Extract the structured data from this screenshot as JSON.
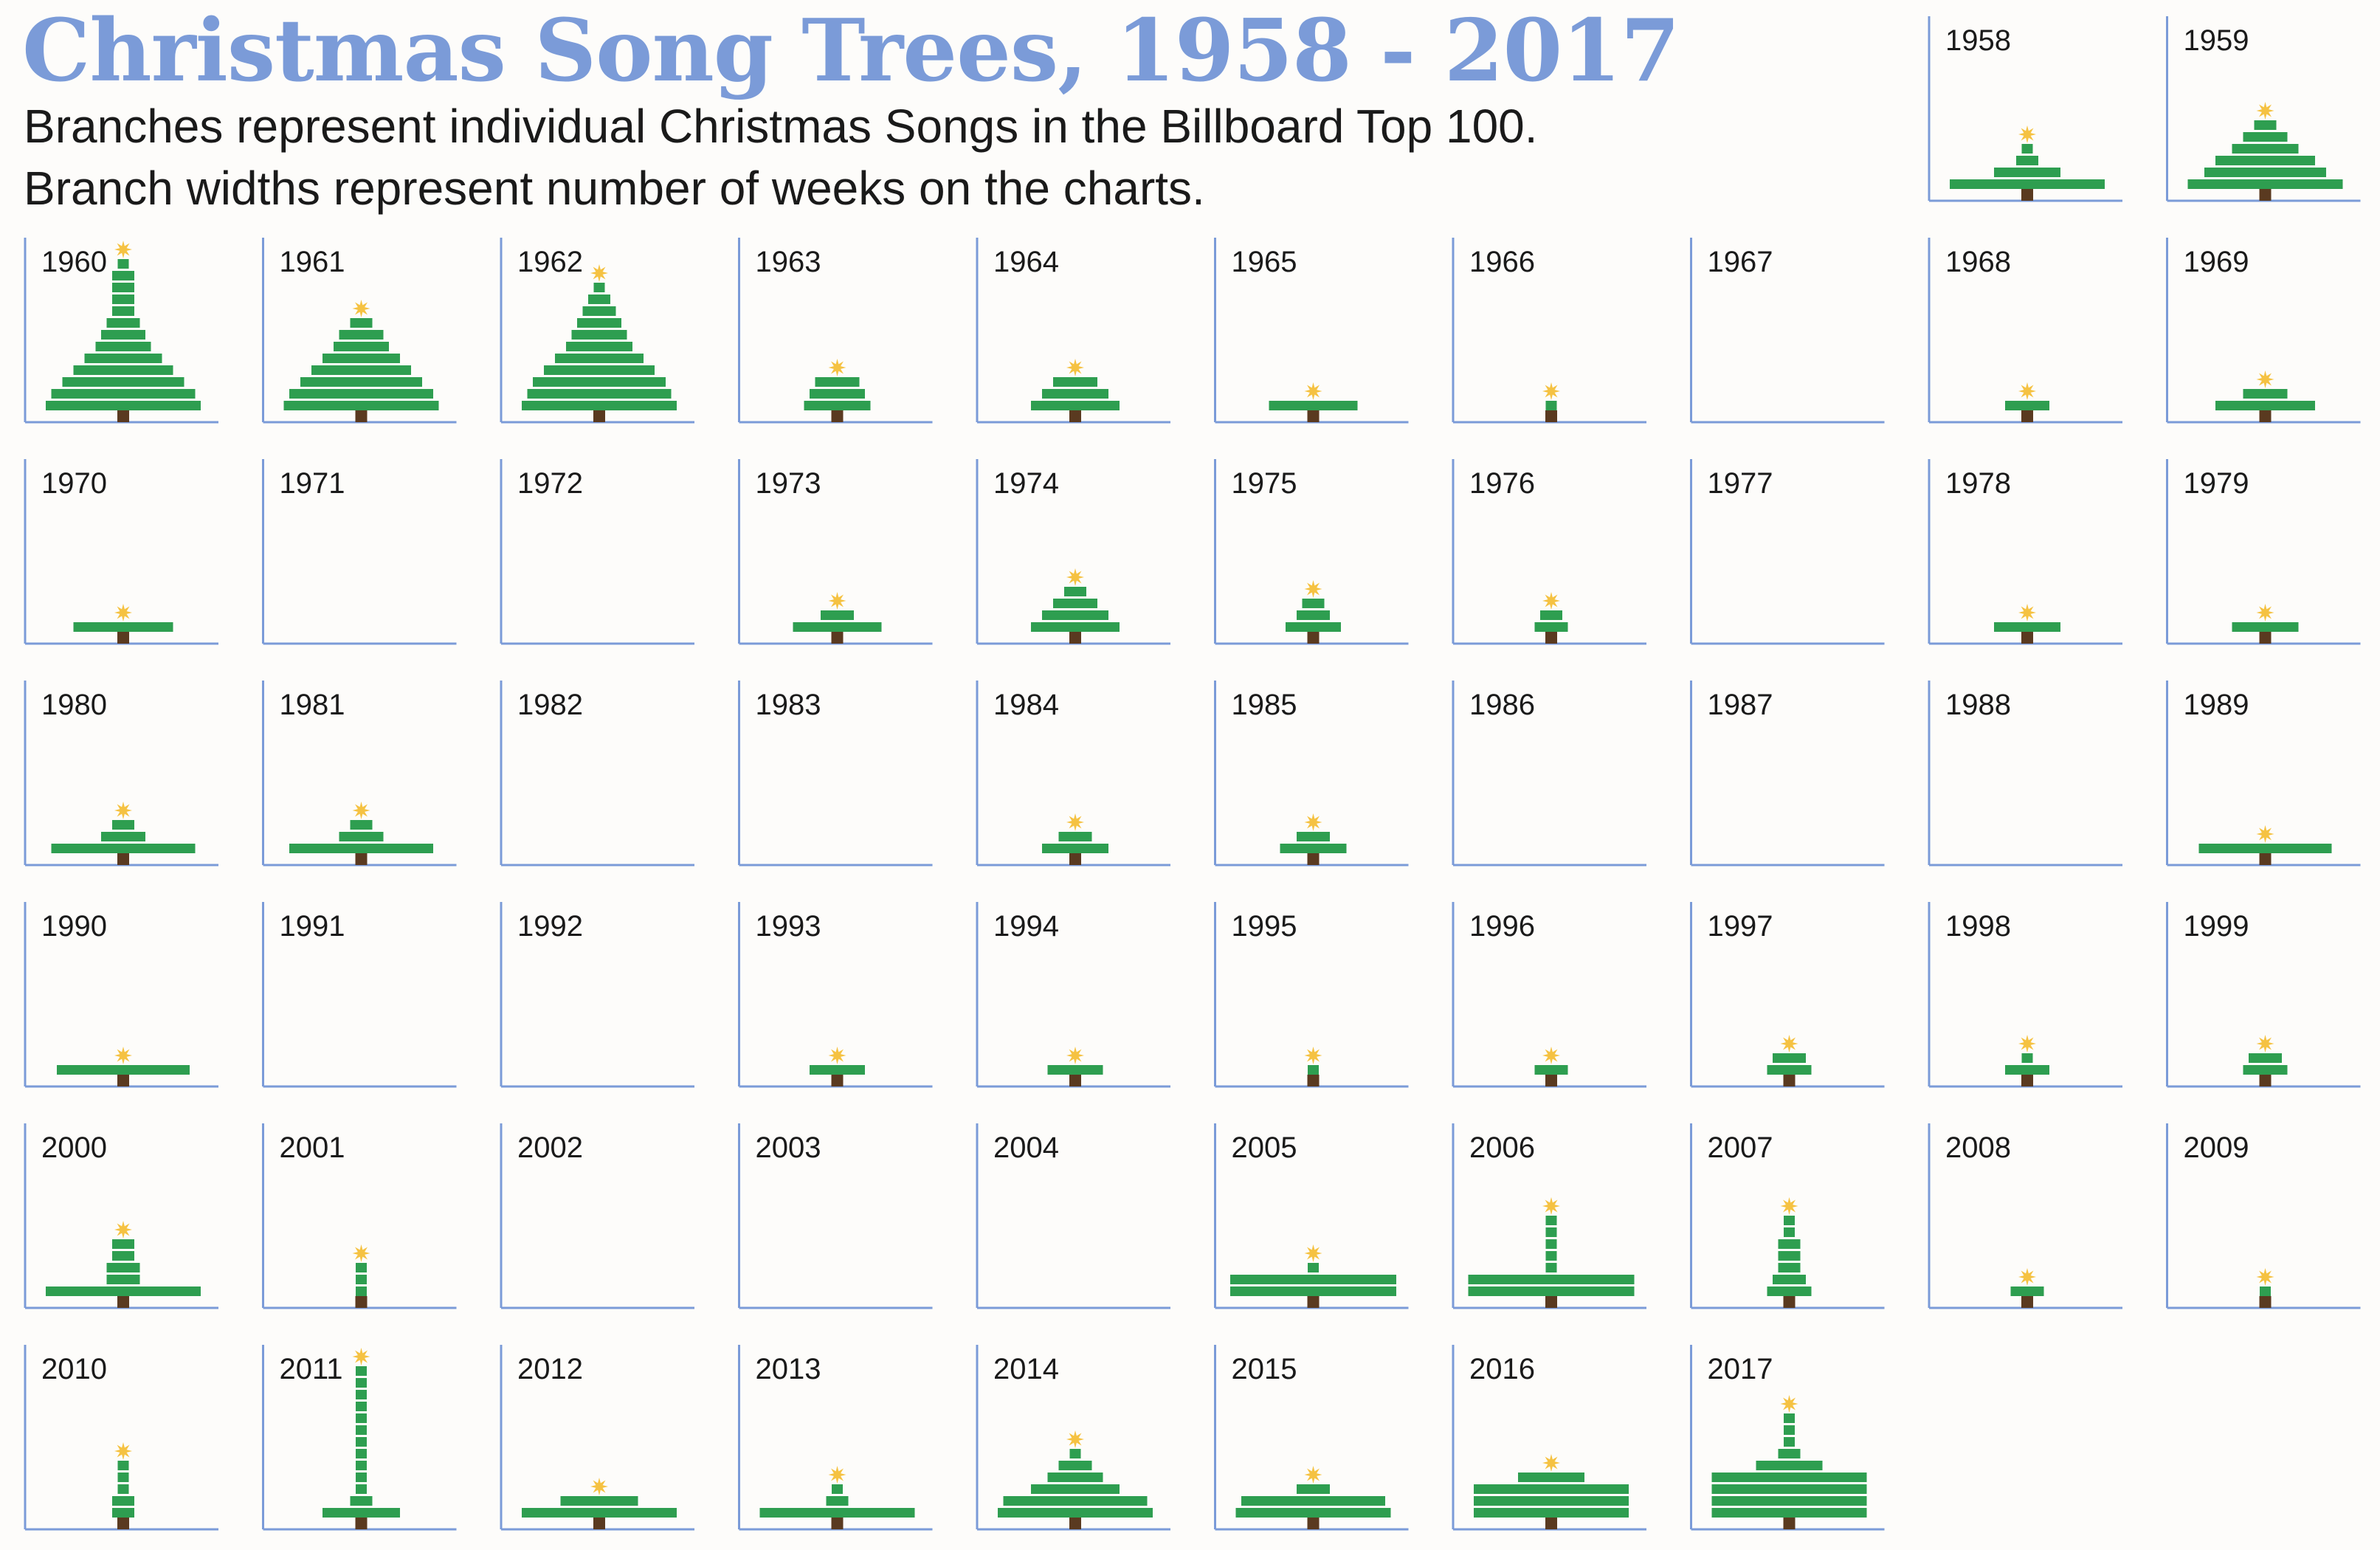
{
  "title": "Christmas Song Trees, 1958 - 2017",
  "subtitle_lines": [
    "Branches represent individual Christmas Songs in the Billboard Top 100.",
    "Branch widths represent number of weeks on the charts."
  ],
  "colors": {
    "title": "#7b9bd8",
    "axis": "#7b9bd8",
    "branch": "#2e9e50",
    "trunk": "#5a3a20",
    "star": "#f5c242",
    "text": "#1a1a1a"
  },
  "chart_data": {
    "type": "bar",
    "layout": "small-multiples",
    "encoding": "Each panel is one year; each horizontal branch is one Christmas song, branch width = weeks on the Billboard Top 100 chart, stacked widest at the bottom.",
    "xlabel": "",
    "ylabel": "",
    "grid": false,
    "years": [
      {
        "year": "1958",
        "weeks": [
          14,
          6,
          2,
          1
        ]
      },
      {
        "year": "1959",
        "weeks": [
          14,
          11,
          9,
          6,
          4,
          2
        ]
      },
      {
        "year": "1960",
        "weeks": [
          14,
          13,
          11,
          9,
          7,
          5,
          4,
          3,
          2,
          2,
          2,
          2,
          1
        ]
      },
      {
        "year": "1961",
        "weeks": [
          14,
          13,
          11,
          9,
          7,
          5,
          4,
          2
        ]
      },
      {
        "year": "1962",
        "weeks": [
          14,
          13,
          12,
          10,
          8,
          6,
          5,
          4,
          3,
          2,
          1
        ]
      },
      {
        "year": "1963",
        "weeks": [
          6,
          5,
          4
        ]
      },
      {
        "year": "1964",
        "weeks": [
          8,
          6,
          4
        ]
      },
      {
        "year": "1965",
        "weeks": [
          8
        ]
      },
      {
        "year": "1966",
        "weeks": [
          1
        ]
      },
      {
        "year": "1967",
        "weeks": []
      },
      {
        "year": "1968",
        "weeks": [
          4
        ]
      },
      {
        "year": "1969",
        "weeks": [
          9,
          4
        ]
      },
      {
        "year": "1970",
        "weeks": [
          9
        ]
      },
      {
        "year": "1971",
        "weeks": []
      },
      {
        "year": "1972",
        "weeks": []
      },
      {
        "year": "1973",
        "weeks": [
          8,
          3
        ]
      },
      {
        "year": "1974",
        "weeks": [
          8,
          6,
          4,
          2
        ]
      },
      {
        "year": "1975",
        "weeks": [
          5,
          3,
          2
        ]
      },
      {
        "year": "1976",
        "weeks": [
          3,
          2
        ]
      },
      {
        "year": "1977",
        "weeks": []
      },
      {
        "year": "1978",
        "weeks": [
          6
        ]
      },
      {
        "year": "1979",
        "weeks": [
          6
        ]
      },
      {
        "year": "1980",
        "weeks": [
          13,
          4,
          2
        ]
      },
      {
        "year": "1981",
        "weeks": [
          13,
          4,
          2
        ]
      },
      {
        "year": "1982",
        "weeks": []
      },
      {
        "year": "1983",
        "weeks": []
      },
      {
        "year": "1984",
        "weeks": [
          6,
          3
        ]
      },
      {
        "year": "1985",
        "weeks": [
          6,
          3
        ]
      },
      {
        "year": "1986",
        "weeks": []
      },
      {
        "year": "1987",
        "weeks": []
      },
      {
        "year": "1988",
        "weeks": []
      },
      {
        "year": "1989",
        "weeks": [
          12
        ]
      },
      {
        "year": "1990",
        "weeks": [
          12
        ]
      },
      {
        "year": "1991",
        "weeks": []
      },
      {
        "year": "1992",
        "weeks": []
      },
      {
        "year": "1993",
        "weeks": [
          5
        ]
      },
      {
        "year": "1994",
        "weeks": [
          5
        ]
      },
      {
        "year": "1995",
        "weeks": [
          1
        ]
      },
      {
        "year": "1996",
        "weeks": [
          3
        ]
      },
      {
        "year": "1997",
        "weeks": [
          4,
          3
        ]
      },
      {
        "year": "1998",
        "weeks": [
          4,
          1
        ]
      },
      {
        "year": "1999",
        "weeks": [
          4,
          3
        ]
      },
      {
        "year": "2000",
        "weeks": [
          14,
          3,
          3,
          2,
          2
        ]
      },
      {
        "year": "2001",
        "weeks": [
          1,
          1,
          1
        ]
      },
      {
        "year": "2002",
        "weeks": []
      },
      {
        "year": "2003",
        "weeks": []
      },
      {
        "year": "2004",
        "weeks": []
      },
      {
        "year": "2005",
        "weeks": [
          15,
          15,
          1
        ]
      },
      {
        "year": "2006",
        "weeks": [
          15,
          15,
          1,
          1,
          1,
          1,
          1
        ]
      },
      {
        "year": "2007",
        "weeks": [
          4,
          3,
          2,
          2,
          2,
          1,
          1
        ]
      },
      {
        "year": "2008",
        "weeks": [
          3
        ]
      },
      {
        "year": "2009",
        "weeks": [
          1
        ]
      },
      {
        "year": "2010",
        "weeks": [
          2,
          2,
          1,
          1,
          1
        ]
      },
      {
        "year": "2011",
        "weeks": [
          7,
          2,
          1,
          1,
          1,
          1,
          1,
          1,
          1,
          1,
          1,
          1,
          1
        ]
      },
      {
        "year": "2012",
        "weeks": [
          14,
          7
        ]
      },
      {
        "year": "2013",
        "weeks": [
          14,
          2,
          1
        ]
      },
      {
        "year": "2014",
        "weeks": [
          14,
          13,
          8,
          5,
          3,
          1
        ]
      },
      {
        "year": "2015",
        "weeks": [
          14,
          13,
          3
        ]
      },
      {
        "year": "2016",
        "weeks": [
          14,
          14,
          14,
          6
        ]
      },
      {
        "year": "2017",
        "weeks": [
          14,
          14,
          14,
          14,
          6,
          2,
          1,
          1,
          1
        ]
      }
    ]
  }
}
